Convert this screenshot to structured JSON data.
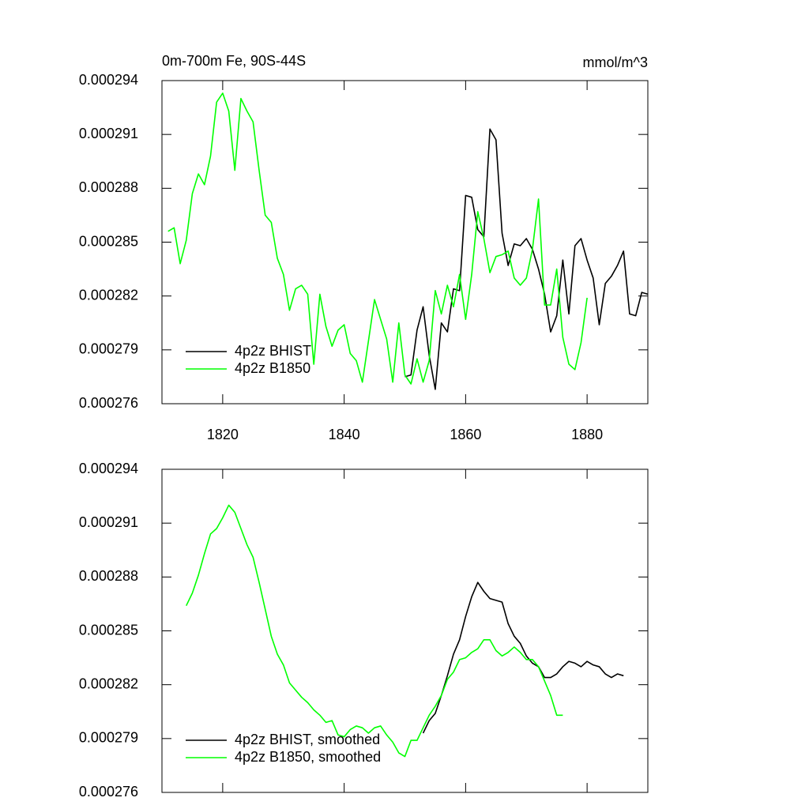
{
  "chart_data": [
    {
      "type": "line",
      "title": "0m-700m Fe, 90S-44S",
      "units": "mmol/m^3",
      "x": [
        1811,
        1812,
        1813,
        1814,
        1815,
        1816,
        1817,
        1818,
        1819,
        1820,
        1821,
        1822,
        1823,
        1824,
        1825,
        1826,
        1827,
        1828,
        1829,
        1830,
        1831,
        1832,
        1833,
        1834,
        1835,
        1836,
        1837,
        1838,
        1839,
        1840,
        1841,
        1842,
        1843,
        1844,
        1845,
        1846,
        1847,
        1848,
        1849,
        1850,
        1851,
        1852,
        1853,
        1854,
        1855,
        1856,
        1857,
        1858,
        1859,
        1860,
        1861,
        1862,
        1863,
        1864,
        1865,
        1866,
        1867,
        1868,
        1869,
        1870,
        1871,
        1872,
        1873,
        1874,
        1875,
        1876,
        1877,
        1878,
        1879,
        1880,
        1881,
        1882,
        1883,
        1884,
        1885,
        1886,
        1887,
        1888,
        1889,
        1890
      ],
      "series": [
        {
          "name": "4p2z BHIST",
          "color": "#000000",
          "values": [
            null,
            null,
            null,
            null,
            null,
            null,
            null,
            null,
            null,
            null,
            null,
            null,
            null,
            null,
            null,
            null,
            null,
            null,
            null,
            null,
            null,
            null,
            null,
            null,
            null,
            null,
            null,
            null,
            null,
            null,
            null,
            null,
            null,
            null,
            null,
            null,
            null,
            null,
            null,
            0.0002775,
            0.0002776,
            0.0002801,
            0.0002814,
            0.0002787,
            0.0002768,
            0.0002805,
            0.00028,
            0.0002824,
            0.0002823,
            0.0002876,
            0.0002875,
            0.0002857,
            0.0002853,
            0.0002913,
            0.0002907,
            0.0002855,
            0.0002837,
            0.0002849,
            0.0002848,
            0.0002852,
            0.0002846,
            0.0002835,
            0.0002821,
            0.00028,
            0.0002809,
            0.000284,
            0.000281,
            0.0002848,
            0.0002852,
            0.000284,
            0.000283,
            0.0002804,
            0.0002827,
            0.0002831,
            0.0002837,
            0.0002845,
            0.000281,
            0.0002809,
            0.0002822,
            0.0002821
          ]
        },
        {
          "name": "4p2z B1850",
          "color": "#00ff00",
          "values": [
            0.0002856,
            0.0002858,
            0.0002838,
            0.0002851,
            0.0002877,
            0.0002888,
            0.0002882,
            0.0002898,
            0.0002928,
            0.0002933,
            0.0002923,
            0.000289,
            0.000293,
            0.0002923,
            0.0002917,
            0.000289,
            0.0002865,
            0.0002861,
            0.0002841,
            0.0002832,
            0.0002812,
            0.0002824,
            0.0002826,
            0.0002821,
            0.0002782,
            0.0002821,
            0.0002803,
            0.0002792,
            0.0002801,
            0.0002804,
            0.0002788,
            0.0002784,
            0.0002772,
            0.0002795,
            0.0002818,
            0.0002807,
            0.0002796,
            0.0002772,
            0.0002805,
            0.0002776,
            0.0002771,
            0.0002785,
            0.0002772,
            0.0002784,
            0.0002823,
            0.000281,
            0.0002826,
            0.0002814,
            0.0002832,
            0.0002807,
            0.0002832,
            0.0002867,
            0.0002852,
            0.0002833,
            0.0002842,
            0.0002843,
            0.0002845,
            0.000283,
            0.0002826,
            0.000283,
            0.0002846,
            0.0002874,
            0.0002815,
            0.0002815,
            0.0002835,
            0.0002797,
            0.0002782,
            0.0002779,
            0.0002794,
            0.0002819,
            null,
            null,
            null,
            null,
            null,
            null,
            null,
            null,
            null,
            null
          ]
        }
      ],
      "xlim": [
        1810,
        1890
      ],
      "xticks": [
        1820,
        1840,
        1860,
        1880
      ],
      "xtick_labels": true,
      "ylim": [
        0.000276,
        0.000294
      ],
      "yticks": [
        0.000276,
        0.000279,
        0.000282,
        0.000285,
        0.000288,
        0.000291,
        0.000294
      ],
      "legend": "lower left"
    },
    {
      "type": "line",
      "x": [
        1814,
        1815,
        1816,
        1817,
        1818,
        1819,
        1820,
        1821,
        1822,
        1823,
        1824,
        1825,
        1826,
        1827,
        1828,
        1829,
        1830,
        1831,
        1832,
        1833,
        1834,
        1835,
        1836,
        1837,
        1838,
        1839,
        1840,
        1841,
        1842,
        1843,
        1844,
        1845,
        1846,
        1847,
        1848,
        1849,
        1850,
        1851,
        1852,
        1853,
        1854,
        1855,
        1856,
        1857,
        1858,
        1859,
        1860,
        1861,
        1862,
        1863,
        1864,
        1865,
        1866,
        1867,
        1868,
        1869,
        1870,
        1871,
        1872,
        1873,
        1874,
        1875,
        1876,
        1877,
        1878,
        1879,
        1880,
        1881,
        1882,
        1883,
        1884,
        1885,
        1886
      ],
      "series": [
        {
          "name": "4p2z BHIST, smoothed",
          "color": "#000000",
          "values": [
            null,
            null,
            null,
            null,
            null,
            null,
            null,
            null,
            null,
            null,
            null,
            null,
            null,
            null,
            null,
            null,
            null,
            null,
            null,
            null,
            null,
            null,
            null,
            null,
            null,
            null,
            null,
            null,
            null,
            null,
            null,
            null,
            null,
            null,
            null,
            null,
            null,
            null,
            null,
            0.0002793,
            0.00028,
            0.0002804,
            0.0002814,
            0.0002825,
            0.0002837,
            0.0002845,
            0.0002858,
            0.0002869,
            0.0002877,
            0.0002872,
            0.0002868,
            0.0002867,
            0.0002866,
            0.0002854,
            0.0002847,
            0.0002843,
            0.0002836,
            0.0002832,
            0.000283,
            0.0002824,
            0.0002824,
            0.0002826,
            0.000283,
            0.0002833,
            0.0002832,
            0.000283,
            0.0002833,
            0.0002831,
            0.000283,
            0.0002826,
            0.0002824,
            0.0002826,
            0.0002825
          ]
        },
        {
          "name": "4p2z B1850, smoothed",
          "color": "#00ff00",
          "values": [
            0.0002864,
            0.0002871,
            0.0002881,
            0.0002893,
            0.0002904,
            0.0002907,
            0.0002913,
            0.000292,
            0.0002916,
            0.0002907,
            0.0002898,
            0.0002891,
            0.0002877,
            0.0002862,
            0.0002847,
            0.0002837,
            0.0002831,
            0.0002821,
            0.0002817,
            0.0002813,
            0.000281,
            0.0002806,
            0.0002803,
            0.0002799,
            0.00028,
            0.0002792,
            0.0002791,
            0.0002795,
            0.0002797,
            0.0002796,
            0.0002793,
            0.0002796,
            0.0002797,
            0.0002792,
            0.0002788,
            0.0002782,
            0.000278,
            0.0002789,
            0.0002789,
            0.0002796,
            0.0002803,
            0.0002808,
            0.0002814,
            0.0002823,
            0.0002827,
            0.0002834,
            0.0002835,
            0.0002838,
            0.000284,
            0.0002845,
            0.0002845,
            0.0002839,
            0.0002836,
            0.0002838,
            0.0002841,
            0.0002838,
            0.0002834,
            0.0002834,
            0.000283,
            0.0002822,
            0.0002814,
            0.0002803,
            0.0002803,
            null,
            null,
            null,
            null,
            null,
            null,
            null,
            null,
            null,
            null
          ]
        }
      ],
      "xlim": [
        1810,
        1890
      ],
      "xticks": [
        1820,
        1840,
        1860,
        1880
      ],
      "xtick_labels": false,
      "ylim": [
        0.000276,
        0.000294
      ],
      "yticks": [
        0.000276,
        0.000279,
        0.000282,
        0.000285,
        0.000288,
        0.000291,
        0.000294
      ],
      "legend": "lower left"
    }
  ]
}
